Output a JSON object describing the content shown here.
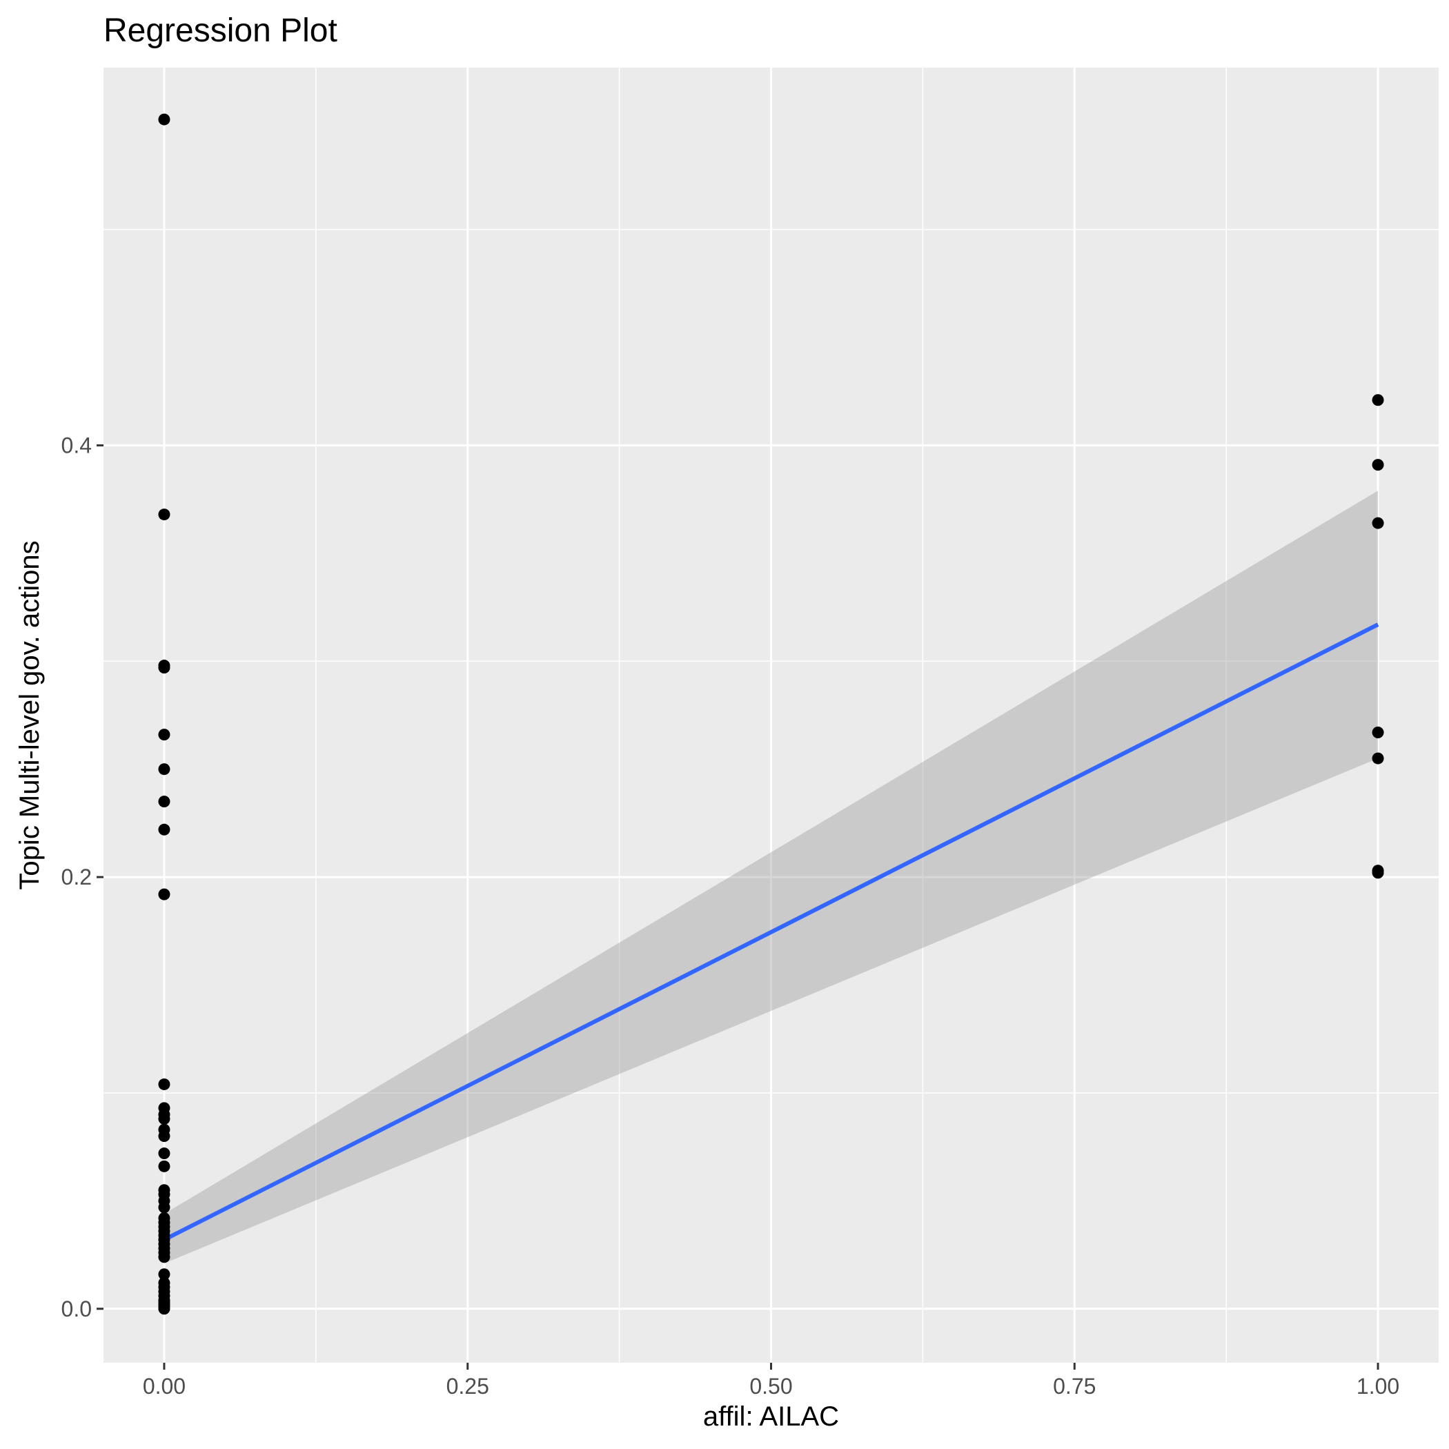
{
  "chart_data": {
    "type": "scatter",
    "title": "Regression Plot",
    "xlabel": "affil: AILAC",
    "ylabel": "Topic Multi-level gov. actions",
    "xlim": [
      -0.05,
      1.05
    ],
    "ylim": [
      -0.025,
      0.575
    ],
    "x_ticks": [
      0.0,
      0.25,
      0.5,
      0.75,
      1.0
    ],
    "x_tick_labels": [
      "0.00",
      "0.25",
      "0.50",
      "0.75",
      "1.00"
    ],
    "y_ticks": [
      0.0,
      0.2,
      0.4
    ],
    "y_tick_labels": [
      "0.0",
      "0.2",
      "0.4"
    ],
    "grid": true,
    "legend": "none",
    "series": [
      {
        "kind": "points",
        "color": "#000000",
        "points": [
          {
            "x": 0,
            "y": 0.551
          },
          {
            "x": 0,
            "y": 0.368
          },
          {
            "x": 0,
            "y": 0.298
          },
          {
            "x": 0,
            "y": 0.297
          },
          {
            "x": 0,
            "y": 0.266
          },
          {
            "x": 0,
            "y": 0.25
          },
          {
            "x": 0,
            "y": 0.235
          },
          {
            "x": 0,
            "y": 0.222
          },
          {
            "x": 0,
            "y": 0.192
          },
          {
            "x": 0,
            "y": 0.104
          },
          {
            "x": 0,
            "y": 0.093
          },
          {
            "x": 0,
            "y": 0.09
          },
          {
            "x": 0,
            "y": 0.088
          },
          {
            "x": 0,
            "y": 0.083
          },
          {
            "x": 0,
            "y": 0.08
          },
          {
            "x": 0,
            "y": 0.072
          },
          {
            "x": 0,
            "y": 0.066
          },
          {
            "x": 0,
            "y": 0.055
          },
          {
            "x": 0,
            "y": 0.053
          },
          {
            "x": 0,
            "y": 0.05
          },
          {
            "x": 0,
            "y": 0.047
          },
          {
            "x": 0,
            "y": 0.042
          },
          {
            "x": 0,
            "y": 0.04
          },
          {
            "x": 0,
            "y": 0.038
          },
          {
            "x": 0,
            "y": 0.036
          },
          {
            "x": 0,
            "y": 0.034
          },
          {
            "x": 0,
            "y": 0.032
          },
          {
            "x": 0,
            "y": 0.03
          },
          {
            "x": 0,
            "y": 0.028
          },
          {
            "x": 0,
            "y": 0.026
          },
          {
            "x": 0,
            "y": 0.024
          },
          {
            "x": 0,
            "y": 0.016
          },
          {
            "x": 0,
            "y": 0.012
          },
          {
            "x": 0,
            "y": 0.01
          },
          {
            "x": 0,
            "y": 0.008
          },
          {
            "x": 0,
            "y": 0.006
          },
          {
            "x": 0,
            "y": 0.004
          },
          {
            "x": 0,
            "y": 0.003
          },
          {
            "x": 0,
            "y": 0.002
          },
          {
            "x": 0,
            "y": 0.001
          },
          {
            "x": 0,
            "y": 0.0
          },
          {
            "x": 1,
            "y": 0.421
          },
          {
            "x": 1,
            "y": 0.391
          },
          {
            "x": 1,
            "y": 0.364
          },
          {
            "x": 1,
            "y": 0.267
          },
          {
            "x": 1,
            "y": 0.255
          },
          {
            "x": 1,
            "y": 0.203
          },
          {
            "x": 1,
            "y": 0.202
          }
        ]
      },
      {
        "kind": "regression_line",
        "color": "#3366ff",
        "x": [
          0,
          1
        ],
        "y": [
          0.032,
          0.317
        ]
      },
      {
        "kind": "confidence_band",
        "color": "#999999",
        "x": [
          0,
          1
        ],
        "lower": [
          0.021,
          0.255
        ],
        "upper": [
          0.044,
          0.379
        ]
      }
    ]
  }
}
